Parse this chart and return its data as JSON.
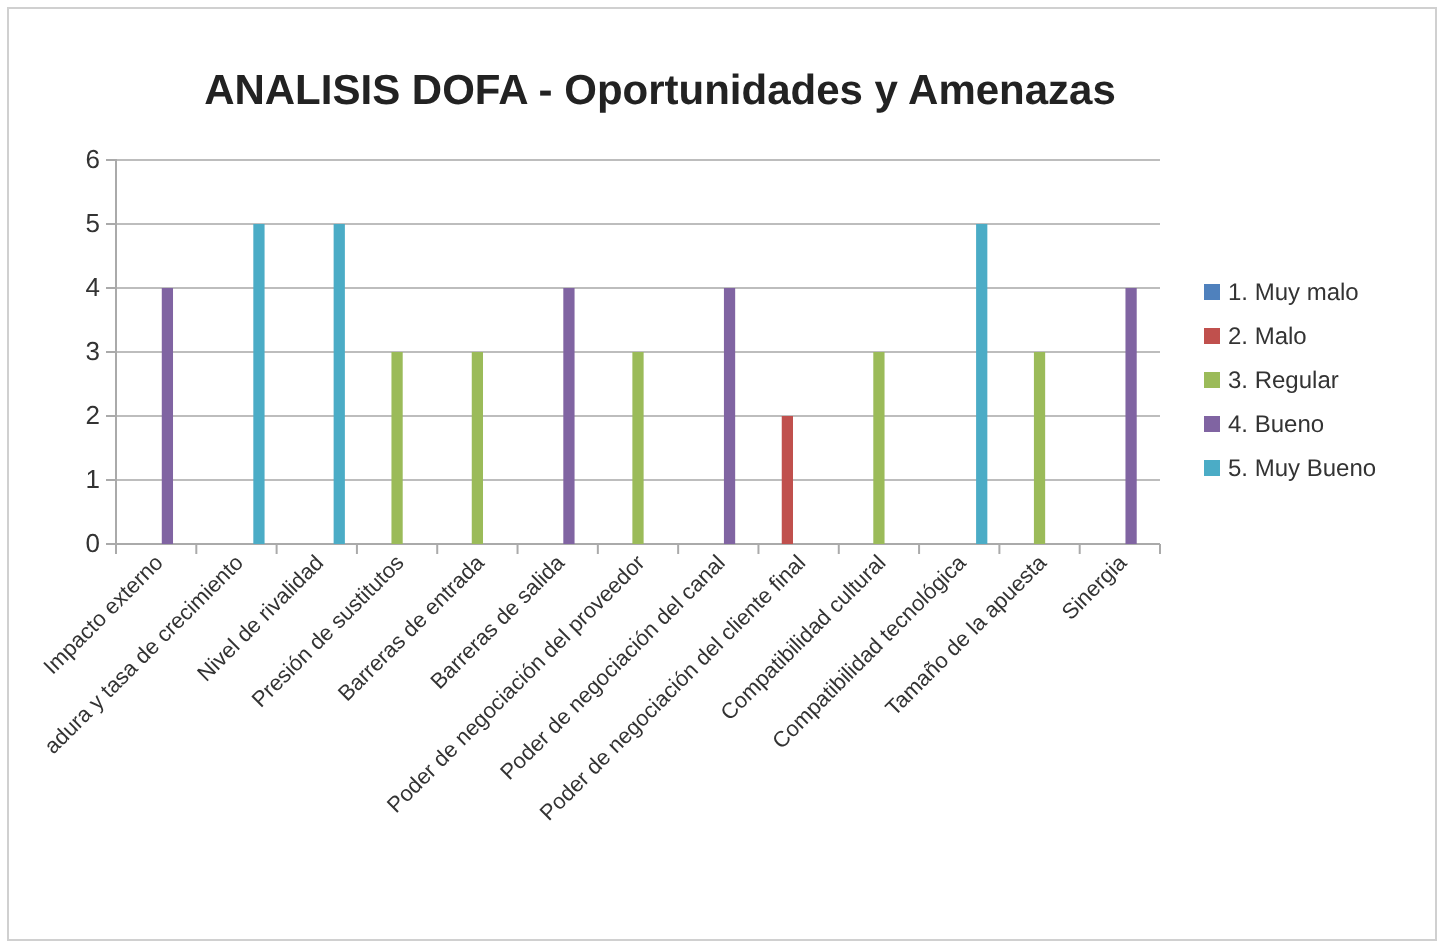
{
  "chart_data": {
    "type": "bar",
    "title": "ANALISIS DOFA - Oportunidades y Amenazas",
    "categories": [
      "Impacto externo",
      "adura y tasa de crecimiento",
      "Nivel de rivalidad",
      "Presión de sustitutos",
      "Barreras de entrada",
      "Barreras de salida",
      "Poder de negociación del proveedor",
      "Poder de negociación del canal",
      "Poder de negociación del cliente final",
      "Compatibilidad cultural",
      "Compatibilidad tecnológica",
      "Tamaño de la apuesta",
      "Sinergia"
    ],
    "series": [
      {
        "name": "1. Muy malo",
        "color": "#4f81bd",
        "values": [
          null,
          null,
          null,
          null,
          null,
          null,
          null,
          null,
          null,
          null,
          null,
          null,
          null
        ]
      },
      {
        "name": "2. Malo",
        "color": "#c0504d",
        "values": [
          null,
          null,
          null,
          null,
          null,
          null,
          null,
          null,
          2,
          null,
          null,
          null,
          null
        ]
      },
      {
        "name": "3. Regular",
        "color": "#9bbb59",
        "values": [
          null,
          null,
          null,
          3,
          3,
          null,
          3,
          null,
          null,
          3,
          null,
          3,
          null
        ]
      },
      {
        "name": "4. Bueno",
        "color": "#8064a2",
        "values": [
          4,
          null,
          null,
          null,
          null,
          4,
          null,
          4,
          null,
          null,
          null,
          null,
          4
        ]
      },
      {
        "name": "5. Muy Bueno",
        "color": "#4bacc6",
        "values": [
          null,
          5,
          5,
          null,
          null,
          null,
          null,
          null,
          null,
          null,
          5,
          null,
          null
        ]
      }
    ],
    "ylim": [
      0,
      6
    ],
    "yticks": [
      0,
      1,
      2,
      3,
      4,
      5,
      6
    ],
    "grid": "y",
    "legend": "right"
  }
}
